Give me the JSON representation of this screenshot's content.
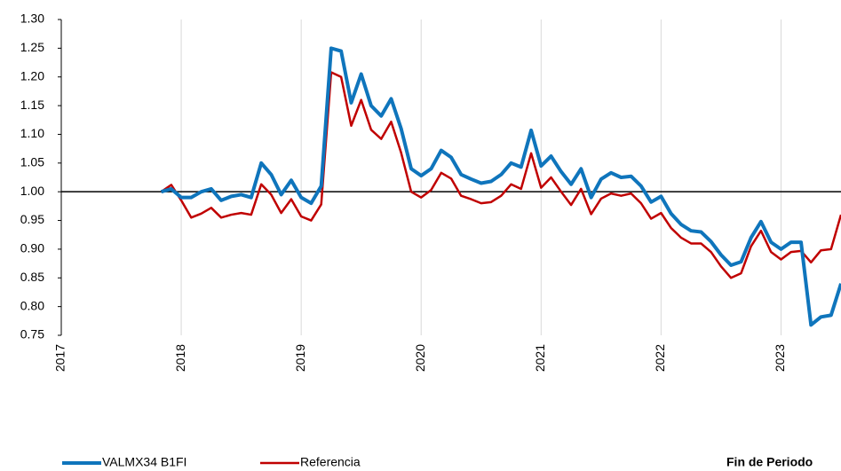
{
  "chart_data": {
    "type": "line",
    "x": [
      2017.833,
      2017.917,
      2018.0,
      2018.083,
      2018.167,
      2018.25,
      2018.333,
      2018.417,
      2018.5,
      2018.583,
      2018.667,
      2018.75,
      2018.833,
      2018.917,
      2019.0,
      2019.083,
      2019.167,
      2019.25,
      2019.333,
      2019.417,
      2019.5,
      2019.583,
      2019.667,
      2019.75,
      2019.833,
      2019.917,
      2020.0,
      2020.083,
      2020.167,
      2020.25,
      2020.333,
      2020.417,
      2020.5,
      2020.583,
      2020.667,
      2020.75,
      2020.833,
      2020.917,
      2021.0,
      2021.083,
      2021.167,
      2021.25,
      2021.333,
      2021.417,
      2021.5,
      2021.583,
      2021.667,
      2021.75,
      2021.833,
      2021.917,
      2022.0,
      2022.083,
      2022.167,
      2022.25,
      2022.333,
      2022.417,
      2022.5,
      2022.583,
      2022.667,
      2022.75,
      2022.833,
      2022.917,
      2023.0,
      2023.083,
      2023.167,
      2023.25,
      2023.333,
      2023.417,
      2023.5
    ],
    "series": [
      {
        "name": "VALMX34 B1FI",
        "color": "#0f75bc",
        "values": [
          1.0,
          1.005,
          0.99,
          0.99,
          1.0,
          1.005,
          0.985,
          0.992,
          0.995,
          0.99,
          1.05,
          1.03,
          0.995,
          1.02,
          0.99,
          0.98,
          1.01,
          1.25,
          1.245,
          1.155,
          1.205,
          1.15,
          1.132,
          1.162,
          1.11,
          1.04,
          1.028,
          1.04,
          1.072,
          1.06,
          1.03,
          1.022,
          1.015,
          1.018,
          1.03,
          1.05,
          1.043,
          1.107,
          1.045,
          1.062,
          1.035,
          1.013,
          1.04,
          0.99,
          1.022,
          1.033,
          1.025,
          1.027,
          1.01,
          0.982,
          0.992,
          0.962,
          0.943,
          0.932,
          0.93,
          0.913,
          0.89,
          0.872,
          0.878,
          0.92,
          0.948,
          0.912,
          0.9,
          0.912,
          0.912,
          0.768,
          0.782,
          0.785,
          0.84
        ]
      },
      {
        "name": "Referencia",
        "color": "#c00000",
        "values": [
          1.0,
          1.012,
          0.985,
          0.955,
          0.962,
          0.972,
          0.955,
          0.96,
          0.963,
          0.96,
          1.013,
          0.995,
          0.963,
          0.987,
          0.957,
          0.95,
          0.978,
          1.208,
          1.2,
          1.115,
          1.16,
          1.108,
          1.092,
          1.122,
          1.068,
          1.0,
          0.99,
          1.003,
          1.033,
          1.023,
          0.993,
          0.987,
          0.98,
          0.982,
          0.993,
          1.013,
          1.005,
          1.067,
          1.007,
          1.025,
          1.0,
          0.977,
          1.005,
          0.961,
          0.988,
          0.997,
          0.993,
          0.997,
          0.98,
          0.953,
          0.963,
          0.937,
          0.92,
          0.91,
          0.91,
          0.895,
          0.87,
          0.85,
          0.858,
          0.905,
          0.932,
          0.895,
          0.882,
          0.895,
          0.897,
          0.877,
          0.898,
          0.9,
          0.96
        ]
      }
    ],
    "xlim": [
      2017,
      2023.5
    ],
    "xticks": [
      2017,
      2018,
      2019,
      2020,
      2021,
      2022,
      2023
    ],
    "ylim": [
      0.75,
      1.3
    ],
    "yticks": [
      {
        "value": 0.75,
        "label": "0.75"
      },
      {
        "value": 0.8,
        "label": "0.80"
      },
      {
        "value": 0.85,
        "label": "0.85"
      },
      {
        "value": 0.9,
        "label": "0.90"
      },
      {
        "value": 0.95,
        "label": "0.95"
      },
      {
        "value": 1.0,
        "label": "1.00"
      },
      {
        "value": 1.05,
        "label": "1.05"
      },
      {
        "value": 1.1,
        "label": "1.10"
      },
      {
        "value": 1.15,
        "label": "1.15"
      },
      {
        "value": 1.2,
        "label": "1.20"
      },
      {
        "value": 1.25,
        "label": "1.25"
      },
      {
        "value": 1.3,
        "label": "1.30"
      }
    ],
    "reference_line": 1.0,
    "grid": true,
    "legend": "bottom",
    "xlabel": "Fin de Periodo"
  }
}
